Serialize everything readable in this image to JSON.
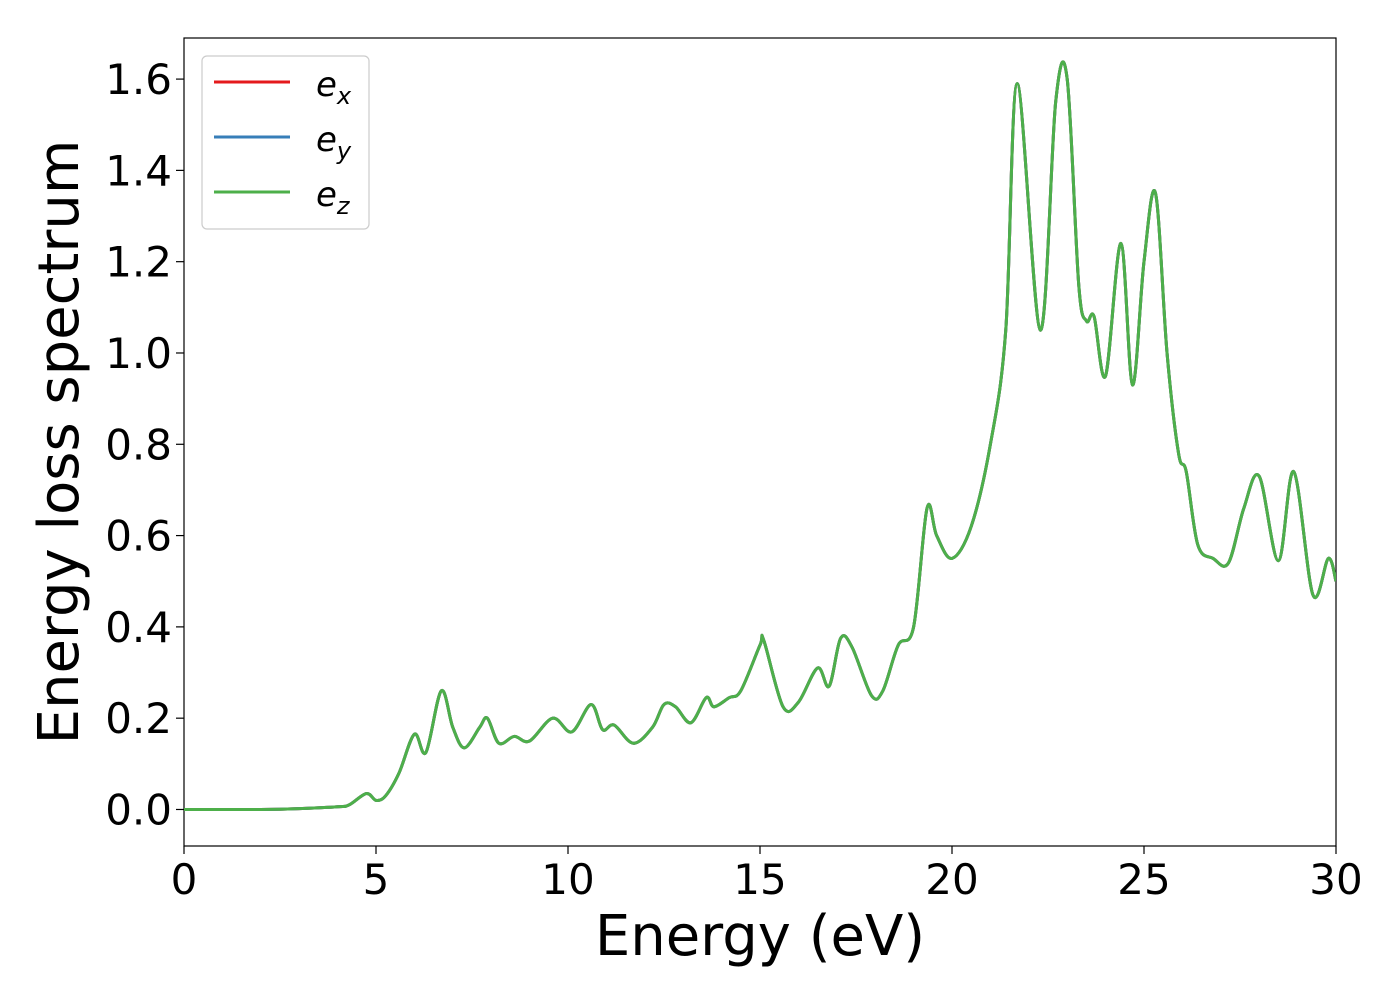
{
  "chart_data": {
    "type": "line",
    "title": "",
    "xlabel": "Energy (eV)",
    "ylabel": "Energy loss spectrum",
    "xlim": [
      0,
      30
    ],
    "ylim": [
      -0.08,
      1.69
    ],
    "xticks": [
      0,
      5,
      10,
      15,
      20,
      25,
      30
    ],
    "xtick_labels": [
      "0",
      "5",
      "10",
      "15",
      "20",
      "25",
      "30"
    ],
    "yticks": [
      0.0,
      0.2,
      0.4,
      0.6,
      0.8,
      1.0,
      1.2,
      1.4,
      1.6
    ],
    "ytick_labels": [
      "0.0",
      "0.2",
      "0.4",
      "0.6",
      "0.8",
      "1.0",
      "1.2",
      "1.4",
      "1.6"
    ],
    "grid": false,
    "legend_position": "top-left",
    "series": [
      {
        "name": "e_x",
        "legend_main": "e",
        "legend_sub": "x",
        "color": "#e41a1c"
      },
      {
        "name": "e_y",
        "legend_main": "e",
        "legend_sub": "y",
        "color": "#377eb8"
      },
      {
        "name": "e_z",
        "legend_main": "e",
        "legend_sub": "z",
        "color": "#4daf4a"
      }
    ],
    "x": [
      0,
      1,
      2,
      3,
      4,
      4.3,
      4.75,
      5.0,
      5.25,
      5.6,
      6.0,
      6.3,
      6.7,
      7.0,
      7.3,
      7.7,
      7.9,
      8.2,
      8.6,
      9.0,
      9.6,
      10.1,
      10.6,
      10.9,
      11.2,
      11.7,
      12.2,
      12.5,
      12.8,
      13.2,
      13.6,
      13.8,
      14.2,
      14.5,
      15.0,
      15.1,
      15.6,
      16.0,
      16.5,
      16.8,
      17.1,
      17.4,
      17.9,
      18.2,
      18.6,
      19.0,
      19.35,
      19.6,
      20.0,
      20.5,
      21.0,
      21.4,
      21.7,
      22.3,
      22.7,
      23.0,
      23.3,
      23.5,
      23.7,
      24.0,
      24.4,
      24.7,
      25.0,
      25.3,
      25.6,
      25.9,
      26.1,
      26.4,
      26.8,
      27.2,
      27.6,
      28.0,
      28.5,
      28.9,
      29.4,
      29.8,
      30.0
    ],
    "values": [
      0.0,
      0.0,
      0.0,
      0.002,
      0.006,
      0.01,
      0.035,
      0.02,
      0.03,
      0.08,
      0.165,
      0.125,
      0.26,
      0.18,
      0.135,
      0.18,
      0.2,
      0.145,
      0.16,
      0.15,
      0.2,
      0.17,
      0.23,
      0.175,
      0.185,
      0.145,
      0.18,
      0.23,
      0.225,
      0.19,
      0.245,
      0.225,
      0.245,
      0.26,
      0.36,
      0.37,
      0.225,
      0.235,
      0.31,
      0.27,
      0.375,
      0.355,
      0.25,
      0.26,
      0.36,
      0.4,
      0.66,
      0.6,
      0.55,
      0.62,
      0.8,
      1.05,
      1.59,
      1.05,
      1.55,
      1.6,
      1.15,
      1.07,
      1.08,
      0.95,
      1.24,
      0.93,
      1.2,
      1.35,
      1.0,
      0.78,
      0.74,
      0.58,
      0.55,
      0.54,
      0.66,
      0.73,
      0.545,
      0.74,
      0.47,
      0.55,
      0.5
    ]
  }
}
